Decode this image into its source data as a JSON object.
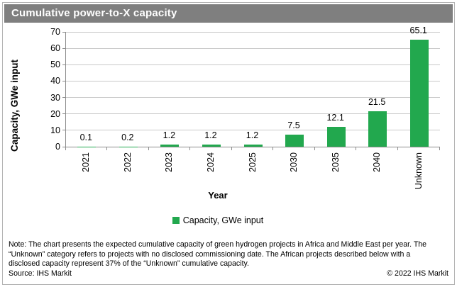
{
  "window": {
    "title": "Cumulative power-to-X capacity"
  },
  "chart_data": {
    "type": "bar",
    "title": "Cumulative power-to-X capacity",
    "categories": [
      "2021",
      "2022",
      "2023",
      "2024",
      "2025",
      "2030",
      "2035",
      "2040",
      "Unknown"
    ],
    "values": [
      0.1,
      0.2,
      1.2,
      1.2,
      1.2,
      7.5,
      12.1,
      21.5,
      65.1
    ],
    "data_labels": [
      "0.1",
      "0.2",
      "1.2",
      "1.2",
      "1.2",
      "7.5",
      "12.1",
      "21.5",
      "65.1"
    ],
    "xlabel": "Year",
    "ylabel": "Capacity, GWe input",
    "ylim": [
      0,
      70
    ],
    "yticks": [
      0,
      10,
      20,
      30,
      40,
      50,
      60,
      70
    ],
    "grid": "horizontal",
    "legend_position": "bottom",
    "legend_label": "Capacity, GWe input",
    "bar_color": "#22a84e"
  },
  "footer": {
    "note_lines": [
      "Note: The chart presents the expected cumulative capacity of green hydrogen projects in Africa and Middle East per year. The",
      "“Unknown” category refers to projects with no disclosed commissioning date. The African projects described below with a",
      "disclosed capacity represent 37% of the “Unknown” cumulative capacity."
    ],
    "source": "Source: IHS Markit",
    "copyright": "© 2022 IHS Markit"
  },
  "colors": {
    "bar_green": "#22a84e",
    "titlebar_gray": "#7f7f7f",
    "gridline_gray": "#c9c9c9",
    "axis_gray": "#8c8c8c",
    "frame_border": "#b3b3b3"
  }
}
